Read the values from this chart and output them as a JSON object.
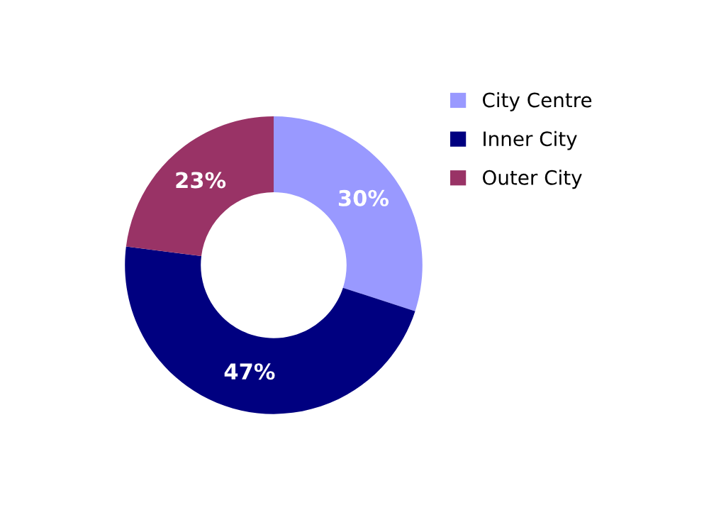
{
  "chart_data": {
    "type": "donut",
    "categories": [
      "City Centre",
      "Inner City",
      "Outer City"
    ],
    "values": [
      30,
      47,
      23
    ],
    "colors": [
      "#9999ff",
      "#000080",
      "#993366"
    ],
    "value_labels": [
      "30%",
      "47%",
      "23%"
    ],
    "legend": "right"
  }
}
